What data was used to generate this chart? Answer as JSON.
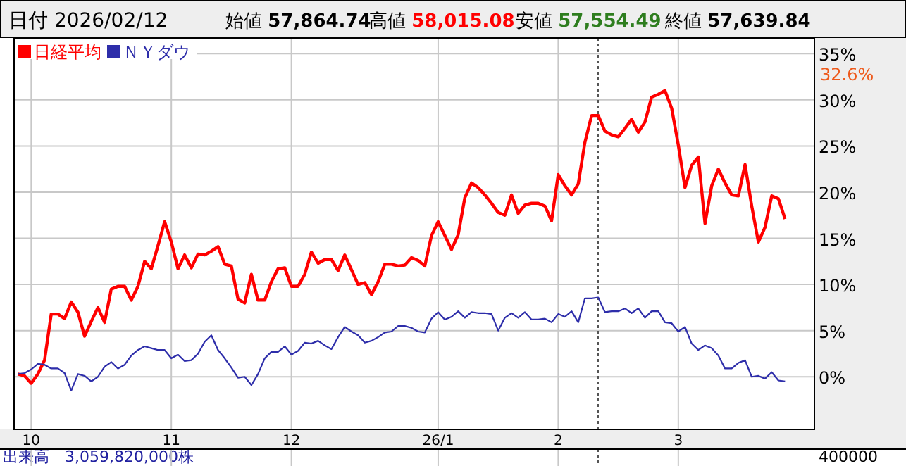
{
  "chart_data": {
    "type": "line",
    "annotations": [
      "日付 2026/02/12",
      "始値 **57,864.74**",
      "高値 **58,015.08**",
      "安値 **57,554.49**",
      "終値 **57,639.84**",
      "出来高　3,059,820,000株",
      "400000",
      "32.6%"
    ],
    "categories": [
      null,
      null,
      "10",
      null,
      null,
      null,
      null,
      null,
      null,
      null,
      null,
      null,
      null,
      null,
      null,
      null,
      null,
      null,
      null,
      null,
      null,
      null,
      null,
      "11",
      null,
      null,
      null,
      null,
      null,
      null,
      null,
      null,
      null,
      null,
      null,
      null,
      null,
      null,
      null,
      null,
      null,
      "12",
      null,
      null,
      null,
      null,
      null,
      null,
      null,
      null,
      null,
      null,
      null,
      null,
      null,
      null,
      null,
      null,
      null,
      null,
      null,
      null,
      null,
      "26/1",
      null,
      null,
      null,
      null,
      null,
      null,
      null,
      null,
      null,
      null,
      null,
      null,
      null,
      null,
      null,
      null,
      null,
      "2",
      null,
      null,
      null,
      null,
      null,
      null,
      null,
      null,
      null,
      null,
      null,
      null,
      null,
      null,
      null,
      null,
      null,
      "3",
      null,
      null,
      null,
      null,
      null,
      null,
      null,
      null,
      null,
      null,
      null,
      null,
      null,
      null,
      null,
      null
    ],
    "series": [
      {
        "name": "日経平均",
        "color": "#ff0000",
        "values": [
          0.3,
          0.1,
          -0.7,
          0.3,
          1.8,
          6.8,
          6.8,
          6.3,
          8.1,
          7.0,
          4.4,
          6.0,
          7.5,
          5.9,
          9.5,
          9.8,
          9.8,
          8.3,
          9.8,
          12.5,
          11.7,
          14.2,
          16.8,
          14.6,
          11.7,
          13.2,
          11.8,
          13.3,
          13.2,
          13.6,
          14.1,
          12.2,
          12.0,
          8.4,
          8.0,
          11.1,
          8.3,
          8.3,
          10.3,
          11.7,
          11.8,
          9.8,
          9.8,
          11.1,
          13.5,
          12.3,
          12.7,
          12.7,
          11.5,
          13.2,
          11.6,
          10.0,
          10.2,
          8.9,
          10.3,
          12.2,
          12.2,
          12.0,
          12.1,
          12.9,
          12.6,
          12.0,
          15.3,
          16.8,
          15.3,
          13.8,
          15.4,
          19.4,
          21.0,
          20.5,
          19.7,
          18.8,
          17.8,
          17.5,
          19.7,
          17.7,
          18.6,
          18.8,
          18.8,
          18.5,
          16.9,
          21.9,
          20.7,
          19.7,
          20.9,
          25.4,
          28.3,
          28.3,
          26.6,
          26.2,
          26.0,
          26.9,
          27.9,
          26.5,
          27.6,
          30.3,
          30.6,
          31.0,
          29.1,
          25.1,
          20.5,
          22.9,
          23.8,
          16.6,
          20.7,
          22.5,
          21.0,
          19.7,
          19.6,
          23.0,
          18.5,
          14.6,
          16.2,
          19.6,
          19.3,
          17.1
        ]
      },
      {
        "name": "ＮＹダウ",
        "color": "#2e2eaa",
        "values": [
          0.3,
          0.4,
          0.8,
          1.4,
          1.3,
          0.9,
          0.9,
          0.4,
          -1.5,
          0.3,
          0.1,
          -0.5,
          0,
          1.1,
          1.6,
          0.9,
          1.3,
          2.3,
          2.9,
          3.3,
          3.1,
          2.9,
          2.9,
          2.0,
          2.4,
          1.7,
          1.8,
          2.5,
          3.8,
          4.5,
          2.9,
          2.0,
          1.0,
          -0.1,
          0,
          -0.9,
          0.3,
          2.0,
          2.7,
          2.7,
          3.3,
          2.4,
          2.8,
          3.7,
          3.6,
          3.9,
          3.4,
          3.0,
          4.3,
          5.4,
          4.9,
          4.5,
          3.7,
          3.9,
          4.3,
          4.8,
          4.9,
          5.5,
          5.5,
          5.3,
          4.9,
          4.8,
          6.3,
          7.0,
          6.2,
          6.5,
          7.1,
          6.4,
          7.0,
          6.9,
          6.9,
          6.8,
          5.0,
          6.4,
          6.9,
          6.4,
          7.0,
          6.2,
          6.2,
          6.3,
          5.9,
          6.8,
          6.5,
          7.1,
          5.9,
          8.5,
          8.5,
          8.6,
          7.0,
          7.1,
          7.1,
          7.4,
          6.9,
          7.4,
          6.4,
          7.1,
          7.1,
          5.9,
          5.8,
          4.9,
          5.4,
          3.6,
          2.9,
          3.4,
          3.1,
          2.3,
          0.9,
          0.9,
          1.5,
          1.8,
          0,
          0.1,
          -0.2,
          0.5,
          -0.4,
          -0.5
        ]
      }
    ],
    "ylim": [
      -5.7,
      36.7
    ],
    "yticks": [
      {
        "value": 0,
        "label": "0%"
      },
      {
        "value": 5,
        "label": "5%"
      },
      {
        "value": 10,
        "label": "10%"
      },
      {
        "value": 15,
        "label": "15%"
      },
      {
        "value": 20,
        "label": "20%"
      },
      {
        "value": 25,
        "label": "25%"
      },
      {
        "value": 30,
        "label": "30%"
      },
      {
        "value": 35,
        "label": "35%"
      }
    ],
    "grid": true,
    "legend": "top left",
    "line_style": "solid",
    "marker": "none"
  }
}
